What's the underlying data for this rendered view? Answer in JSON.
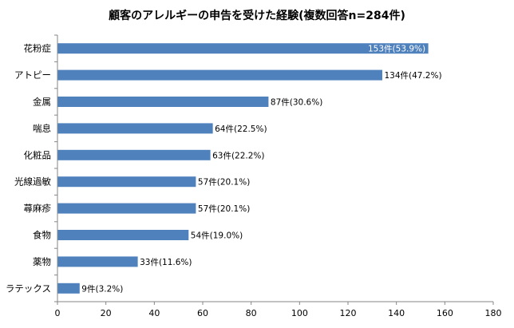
{
  "chart_data": {
    "type": "bar",
    "orientation": "horizontal",
    "title": "顧客のアレルギーの申告を受けた経験(複数回答n=284件)",
    "categories": [
      "花粉症",
      "アトピー",
      "金属",
      "喘息",
      "化粧品",
      "光線過敏",
      "蕁麻疹",
      "食物",
      "薬物",
      "ラテックス"
    ],
    "values": [
      153,
      134,
      87,
      64,
      63,
      57,
      57,
      54,
      33,
      9
    ],
    "data_labels": [
      "153件(53.9%)",
      "134件(47.2%)",
      "87件(30.6%)",
      "64件(22.5%)",
      "63件(22.2%)",
      "57件(20.1%)",
      "57件(20.1%)",
      "54件(19.0%)",
      "33件(11.6%)",
      "9件(3.2%)"
    ],
    "xlim": [
      0,
      180
    ],
    "xticks": [
      0,
      20,
      40,
      60,
      80,
      100,
      120,
      140,
      160,
      180
    ],
    "xlabel": "",
    "ylabel": "",
    "grid": false,
    "legend": "none",
    "bar_color": "#4f81bd"
  }
}
